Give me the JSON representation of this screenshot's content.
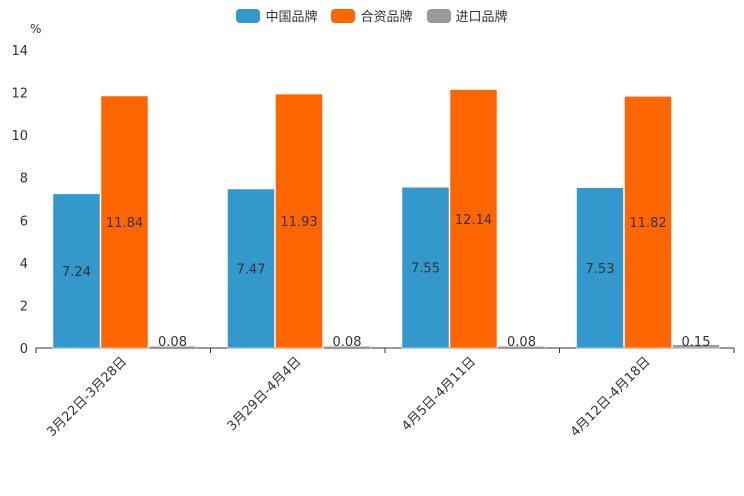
{
  "chart_data": {
    "type": "bar",
    "title": "",
    "ylabel": "%",
    "xlabel": "",
    "ylim": [
      0,
      14
    ],
    "yticks": [
      0,
      2,
      4,
      6,
      8,
      10,
      12,
      14
    ],
    "categories": [
      "3月22日-3月28日",
      "3月29日-4月4日",
      "4月5日-4月11日",
      "4月12日-4月18日"
    ],
    "series": [
      {
        "name": "中国品牌",
        "color": "#3399cc",
        "values": [
          7.24,
          7.47,
          7.55,
          7.53
        ],
        "labels": [
          "7.24",
          "7.47",
          "7.55",
          "7.53"
        ]
      },
      {
        "name": "合资品牌",
        "color": "#ff6600",
        "values": [
          11.84,
          11.93,
          12.14,
          11.82
        ],
        "labels": [
          "11.84",
          "11.93",
          "12.14",
          "11.82"
        ]
      },
      {
        "name": "进口品牌",
        "color": "#999999",
        "values": [
          0.08,
          0.08,
          0.08,
          0.15
        ],
        "labels": [
          "0.08",
          "0.08",
          "0.08",
          "0.15"
        ]
      }
    ],
    "legend_position": "top-center"
  }
}
